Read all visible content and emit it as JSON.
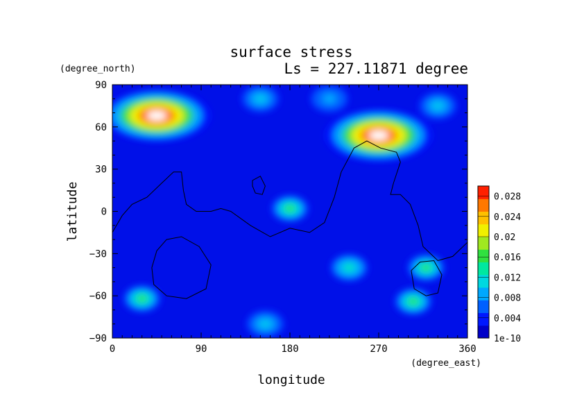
{
  "chart_data": {
    "type": "heatmap",
    "title": "surface stress",
    "subtitle": "Ls = 227.11871 degree",
    "xlabel": "longitude",
    "ylabel": "latitude",
    "x_unit": "(degree_east)",
    "y_unit": "(degree_north)",
    "xlim": [
      0,
      360
    ],
    "ylim": [
      -90,
      90
    ],
    "x_ticks": [
      0,
      90,
      180,
      270,
      360
    ],
    "y_ticks": [
      90,
      60,
      30,
      0,
      -30,
      -60,
      -90
    ],
    "colorbar": {
      "min": 0,
      "max": 0.03,
      "tick_values": [
        0.0,
        0.004,
        0.008,
        0.012,
        0.016,
        0.02,
        0.024,
        0.028
      ],
      "tick_labels": [
        "1e-10",
        "0.004",
        "0.008",
        "0.012",
        "0.016",
        "0.02",
        "0.024",
        "0.028"
      ],
      "colors": [
        "#0000c8",
        "#0018ff",
        "#0060ff",
        "#00a8ff",
        "#00d8e0",
        "#00e8a0",
        "#30e040",
        "#a0e820",
        "#f0f000",
        "#ffc000",
        "#ff7800",
        "#ff2000"
      ]
    },
    "field_peaks": [
      {
        "lon": 45,
        "lat": 68,
        "value": 0.033,
        "note": "max above scale"
      },
      {
        "lon": 270,
        "lat": 54,
        "value": 0.033,
        "note": "max above scale"
      },
      {
        "lon": 180,
        "lat": 2,
        "value": 0.016
      },
      {
        "lon": 30,
        "lat": -62,
        "value": 0.016
      },
      {
        "lon": 318,
        "lat": -40,
        "value": 0.015
      },
      {
        "lon": 305,
        "lat": -64,
        "value": 0.017
      },
      {
        "lon": 240,
        "lat": -40,
        "value": 0.013
      },
      {
        "lon": 150,
        "lat": 80,
        "value": 0.011
      },
      {
        "lon": 220,
        "lat": 80,
        "value": 0.009
      },
      {
        "lon": 330,
        "lat": 75,
        "value": 0.011
      },
      {
        "lon": 155,
        "lat": -80,
        "value": 0.011
      }
    ],
    "contours": [
      {
        "name": "topography-contour",
        "points": [
          [
            0,
            -15
          ],
          [
            10,
            -3
          ],
          [
            20,
            5
          ],
          [
            35,
            10
          ],
          [
            50,
            20
          ],
          [
            62,
            28
          ],
          [
            70,
            28
          ],
          [
            72,
            15
          ],
          [
            75,
            5
          ],
          [
            85,
            0
          ],
          [
            100,
            0
          ],
          [
            110,
            2
          ],
          [
            120,
            0
          ],
          [
            140,
            -10
          ],
          [
            160,
            -18
          ],
          [
            170,
            -15
          ],
          [
            180,
            -12
          ],
          [
            200,
            -15
          ],
          [
            215,
            -8
          ],
          [
            225,
            10
          ],
          [
            232,
            28
          ],
          [
            245,
            45
          ],
          [
            258,
            50
          ],
          [
            272,
            45
          ],
          [
            288,
            42
          ],
          [
            292,
            35
          ],
          [
            285,
            20
          ],
          [
            282,
            12
          ],
          [
            292,
            12
          ],
          [
            302,
            5
          ],
          [
            310,
            -10
          ],
          [
            315,
            -25
          ],
          [
            330,
            -35
          ],
          [
            345,
            -32
          ],
          [
            360,
            -22
          ]
        ]
      },
      {
        "name": "island-contour",
        "points": [
          [
            142,
            22
          ],
          [
            150,
            25
          ],
          [
            155,
            18
          ],
          [
            152,
            12
          ],
          [
            145,
            13
          ],
          [
            142,
            18
          ],
          [
            142,
            22
          ]
        ]
      },
      {
        "name": "hellas-contour",
        "points": [
          [
            40,
            -40
          ],
          [
            45,
            -28
          ],
          [
            55,
            -20
          ],
          [
            70,
            -18
          ],
          [
            88,
            -25
          ],
          [
            100,
            -38
          ],
          [
            95,
            -55
          ],
          [
            75,
            -62
          ],
          [
            55,
            -60
          ],
          [
            42,
            -52
          ],
          [
            40,
            -40
          ]
        ]
      },
      {
        "name": "argyre-contour",
        "points": [
          [
            303,
            -42
          ],
          [
            312,
            -36
          ],
          [
            326,
            -35
          ],
          [
            334,
            -45
          ],
          [
            330,
            -58
          ],
          [
            318,
            -60
          ],
          [
            306,
            -55
          ],
          [
            303,
            -42
          ]
        ]
      }
    ]
  }
}
